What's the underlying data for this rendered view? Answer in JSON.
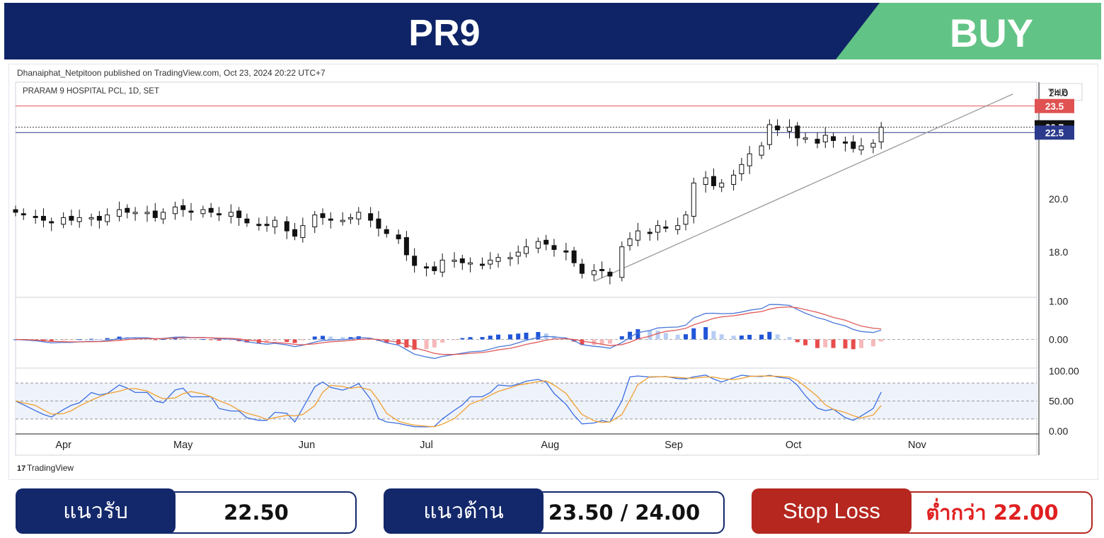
{
  "header": {
    "symbol": "PR9",
    "signal": "BUY",
    "colors": {
      "banner": "#0f2466",
      "signal_bg": "#62c386",
      "text": "#ffffff"
    }
  },
  "chart_meta": {
    "published_line": "Dhanaiphat_Netpitoon published on TradingView.com, Oct 23, 2024 20:22 UTC+7",
    "instrument": "PRARAM 9 HOSPITAL PCL, 1D, SET",
    "currency": "THB",
    "brand": "TradingView"
  },
  "chart_data": {
    "type": "candlestick",
    "instrument": "PRARAM 9 HOSPITAL PCL, 1D, SET",
    "currency": "THB",
    "x_axis": {
      "start": "2024-03-20",
      "end": "2024-12-01",
      "tick_labels": [
        "Apr",
        "May",
        "Jun",
        "Jul",
        "Aug",
        "Sep",
        "Oct",
        "Nov"
      ],
      "tick_dates": [
        "2024-04-01",
        "2024-05-01",
        "2024-06-01",
        "2024-07-01",
        "2024-08-01",
        "2024-09-01",
        "2024-10-01",
        "2024-11-01"
      ]
    },
    "y_axis": {
      "ticks": [
        18.0,
        20.0,
        24.0
      ],
      "ylim": [
        16.3,
        24.4
      ],
      "side": "right"
    },
    "price_labels": [
      {
        "value": "23.5",
        "color": "#e05252"
      },
      {
        "value": "22.7",
        "color": "#111111"
      },
      {
        "value": "22.5",
        "color": "#2b3a8c"
      }
    ],
    "horizontal_lines": [
      {
        "value": 23.5,
        "color": "#e05252",
        "style": "solid"
      },
      {
        "value": 22.7,
        "color": "#333333",
        "style": "dotted"
      },
      {
        "value": 22.5,
        "color": "#2b3a8c",
        "style": "solid"
      }
    ],
    "trendline": {
      "from": {
        "date": "2024-08-12",
        "value": 16.9
      },
      "to": {
        "date": "2024-11-25",
        "value": 23.95
      },
      "color": "#9a9a9a"
    },
    "closes": [
      [
        "2024-03-20",
        19.5
      ],
      [
        "2024-03-22",
        19.4
      ],
      [
        "2024-03-25",
        19.3
      ],
      [
        "2024-03-27",
        19.2
      ],
      [
        "2024-03-29",
        19.1
      ],
      [
        "2024-04-01",
        19.3
      ],
      [
        "2024-04-03",
        19.2
      ],
      [
        "2024-04-05",
        19.3
      ],
      [
        "2024-04-08",
        19.3
      ],
      [
        "2024-04-10",
        19.2
      ],
      [
        "2024-04-12",
        19.4
      ],
      [
        "2024-04-15",
        19.6
      ],
      [
        "2024-04-17",
        19.5
      ],
      [
        "2024-04-19",
        19.5
      ],
      [
        "2024-04-22",
        19.5
      ],
      [
        "2024-04-24",
        19.3
      ],
      [
        "2024-04-26",
        19.5
      ],
      [
        "2024-04-29",
        19.7
      ],
      [
        "2024-05-01",
        19.6
      ],
      [
        "2024-05-03",
        19.5
      ],
      [
        "2024-05-06",
        19.6
      ],
      [
        "2024-05-08",
        19.5
      ],
      [
        "2024-05-10",
        19.4
      ],
      [
        "2024-05-13",
        19.5
      ],
      [
        "2024-05-15",
        19.3
      ],
      [
        "2024-05-17",
        19.1
      ],
      [
        "2024-05-20",
        19.0
      ],
      [
        "2024-05-22",
        19.0
      ],
      [
        "2024-05-24",
        19.2
      ],
      [
        "2024-05-27",
        18.8
      ],
      [
        "2024-05-29",
        18.6
      ],
      [
        "2024-05-31",
        19.0
      ],
      [
        "2024-06-03",
        19.4
      ],
      [
        "2024-06-05",
        19.3
      ],
      [
        "2024-06-07",
        19.2
      ],
      [
        "2024-06-10",
        19.2
      ],
      [
        "2024-06-12",
        19.3
      ],
      [
        "2024-06-14",
        19.5
      ],
      [
        "2024-06-17",
        19.2
      ],
      [
        "2024-06-19",
        18.9
      ],
      [
        "2024-06-21",
        18.7
      ],
      [
        "2024-06-24",
        18.5
      ],
      [
        "2024-06-26",
        17.9
      ],
      [
        "2024-06-28",
        17.5
      ],
      [
        "2024-07-01",
        17.4
      ],
      [
        "2024-07-03",
        17.3
      ],
      [
        "2024-07-05",
        17.7
      ],
      [
        "2024-07-08",
        17.7
      ],
      [
        "2024-07-10",
        17.6
      ],
      [
        "2024-07-12",
        17.6
      ],
      [
        "2024-07-15",
        17.5
      ],
      [
        "2024-07-17",
        17.7
      ],
      [
        "2024-07-19",
        17.8
      ],
      [
        "2024-07-22",
        17.8
      ],
      [
        "2024-07-24",
        18.0
      ],
      [
        "2024-07-26",
        18.2
      ],
      [
        "2024-07-29",
        18.4
      ],
      [
        "2024-07-31",
        18.3
      ],
      [
        "2024-08-02",
        18.1
      ],
      [
        "2024-08-05",
        18.0
      ],
      [
        "2024-08-07",
        17.6
      ],
      [
        "2024-08-09",
        17.2
      ],
      [
        "2024-08-12",
        17.3
      ],
      [
        "2024-08-14",
        17.3
      ],
      [
        "2024-08-16",
        17.1
      ],
      [
        "2024-08-19",
        18.2
      ],
      [
        "2024-08-21",
        18.5
      ],
      [
        "2024-08-23",
        18.8
      ],
      [
        "2024-08-26",
        18.7
      ],
      [
        "2024-08-28",
        19.0
      ],
      [
        "2024-08-30",
        18.9
      ],
      [
        "2024-09-02",
        19.0
      ],
      [
        "2024-09-04",
        19.4
      ],
      [
        "2024-09-06",
        20.6
      ],
      [
        "2024-09-09",
        20.8
      ],
      [
        "2024-09-11",
        20.5
      ],
      [
        "2024-09-13",
        20.6
      ],
      [
        "2024-09-16",
        20.9
      ],
      [
        "2024-09-18",
        21.3
      ],
      [
        "2024-09-20",
        21.7
      ],
      [
        "2024-09-23",
        22.0
      ],
      [
        "2024-09-25",
        22.8
      ],
      [
        "2024-09-27",
        22.6
      ],
      [
        "2024-09-30",
        22.7
      ],
      [
        "2024-10-02",
        22.3
      ],
      [
        "2024-10-04",
        22.3
      ],
      [
        "2024-10-07",
        22.1
      ],
      [
        "2024-10-09",
        22.4
      ],
      [
        "2024-10-11",
        22.2
      ],
      [
        "2024-10-14",
        22.1
      ],
      [
        "2024-10-16",
        21.9
      ],
      [
        "2024-10-18",
        22.0
      ],
      [
        "2024-10-21",
        22.1
      ],
      [
        "2024-10-23",
        22.7
      ]
    ],
    "macd_panel": {
      "y_ticks": [
        1.0,
        0.0
      ],
      "ylim": [
        -0.75,
        1.1
      ],
      "series": [
        {
          "role": "macd",
          "color": "#4a78d8"
        },
        {
          "role": "signal",
          "color": "#e05a5a"
        }
      ],
      "hist_colors": {
        "pos_rising": "#2155d8",
        "pos_falling": "#b7cdf2",
        "neg_falling": "#e84c4c",
        "neg_rising": "#f6b9b9"
      }
    },
    "stoch_panel": {
      "y_ticks": [
        100.0,
        50.0,
        0.0
      ],
      "ylim": [
        -5,
        105
      ],
      "bands": [
        80,
        20
      ],
      "series": [
        {
          "role": "%K",
          "color": "#3a6ee0"
        },
        {
          "role": "%D",
          "color": "#f0a030"
        }
      ]
    }
  },
  "panel_labels": {
    "price_ticks": [
      "24.0",
      "20.0",
      "18.0"
    ],
    "macd_ticks": [
      "1.00",
      "0.00"
    ],
    "stoch_ticks": [
      "100.00",
      "50.00",
      "0.00"
    ]
  },
  "levels": {
    "support_label": "แนวรับ",
    "support_value": "22.50",
    "resistance_label": "แนวต้าน",
    "resistance_value": "23.50 / 24.00",
    "stoploss_label": "Stop Loss",
    "stoploss_value": "ต่ำกว่า 22.00",
    "colors": {
      "navy": "#13286b",
      "red": "#b5271f",
      "red_text": "#e02020"
    }
  }
}
